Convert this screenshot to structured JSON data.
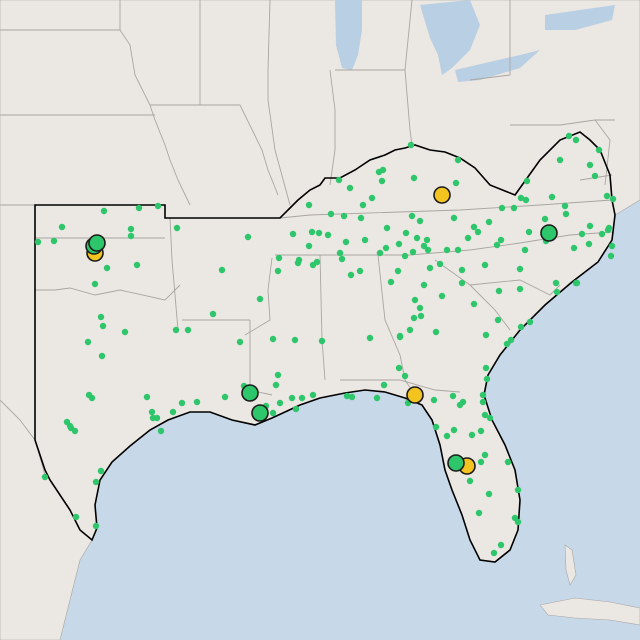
{
  "map": {
    "colors": {
      "land": "#ebe7e2",
      "water": "#c7d8e8",
      "lake": "#b9cfe3",
      "state_border": "#a9a6a2",
      "region_outline": "#000000",
      "small_marker": "#2dc66b",
      "large_marker_green": "#2dc66b",
      "large_marker_yellow": "#f3c41f",
      "marker_stroke": "#1b1b1b"
    },
    "marker_types": [
      "small-green-dot",
      "large-green-circle",
      "large-yellow-circle"
    ]
  }
}
